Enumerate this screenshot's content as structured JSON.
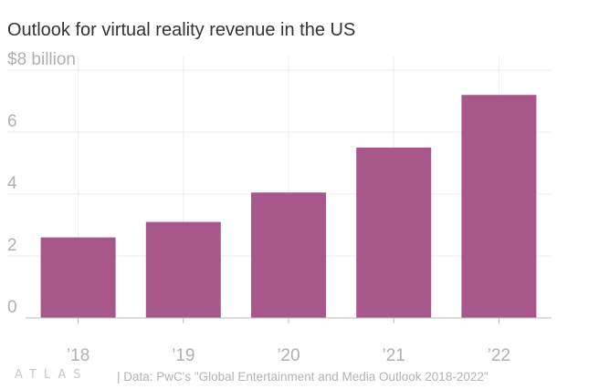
{
  "title": "Outlook for virtual reality revenue in the US",
  "footer": {
    "logo": "ATLAS",
    "source": "| Data: PwC's \"Global Entertainment and Media Outlook 2018-2022\""
  },
  "colors": {
    "bar": "#a8578a",
    "grid": "#ececec",
    "tick_text": "#b0b0b0",
    "axis": "#b9b9b9"
  },
  "chart_data": {
    "type": "bar",
    "title": "Outlook for virtual reality revenue in the US",
    "categories": [
      "’18",
      "’19",
      "’20",
      "’21",
      "’22"
    ],
    "values": [
      2.6,
      3.1,
      4.05,
      5.5,
      7.2
    ],
    "ylim": [
      0,
      8
    ],
    "yticks": [
      0,
      2,
      4,
      6,
      8
    ],
    "ytick_labels": [
      "0",
      "2",
      "4",
      "6",
      "$8 billion"
    ],
    "xlabel": "",
    "ylabel": "",
    "grid": true
  }
}
